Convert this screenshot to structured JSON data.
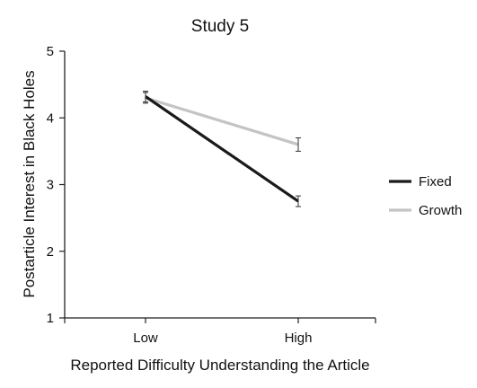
{
  "chart_data": {
    "type": "line",
    "title": "Study 5",
    "xlabel": "Reported Difficulty Understanding the Article",
    "ylabel": "Postarticle Interest in Black Holes",
    "categories": [
      "Low",
      "High"
    ],
    "ylim": [
      1,
      5
    ],
    "yticks": [
      "1",
      "2",
      "3",
      "4",
      "5"
    ],
    "legend_position": "right",
    "grid": false,
    "series": [
      {
        "name": "Fixed",
        "color": "#1a1a1a",
        "values": [
          4.32,
          2.75
        ],
        "error": [
          0.08,
          0.08
        ]
      },
      {
        "name": "Growth",
        "color": "#c4c4c4",
        "values": [
          4.3,
          3.6
        ],
        "error": [
          0.08,
          0.1
        ]
      }
    ]
  }
}
